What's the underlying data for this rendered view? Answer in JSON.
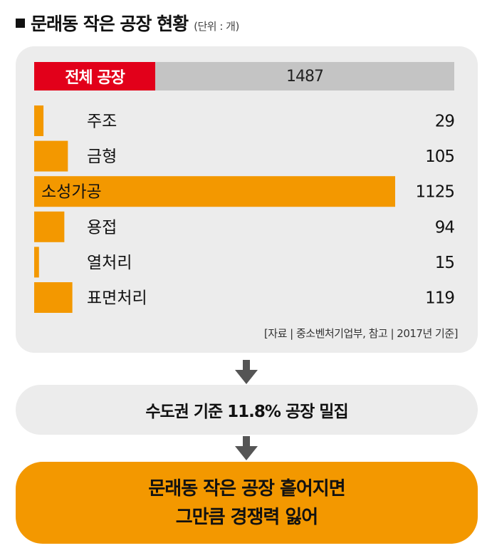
{
  "header": {
    "title": "문래동 작은 공장 현황",
    "unit": "(단위 : 개)"
  },
  "total": {
    "label": "전체 공장",
    "value": "1487"
  },
  "colors": {
    "bar": "#f39800",
    "total_label_bg": "#e2001a",
    "total_bar_bg": "#c4c4c4",
    "panel_bg": "#ececec"
  },
  "chart_data": {
    "type": "bar",
    "orientation": "horizontal",
    "categories": [
      "주조",
      "금형",
      "소성가공",
      "용접",
      "열처리",
      "표면처리"
    ],
    "values": [
      29,
      105,
      1125,
      94,
      15,
      119
    ],
    "total": 1487,
    "value_labels": [
      "29",
      "105",
      "1125",
      "94",
      "15",
      "119"
    ]
  },
  "source": "[자료 | 중소벤처기업부, 참고 | 2017년 기준]",
  "step1": "수도권 기준 11.8% 공장 밀집",
  "step2": {
    "line1": "문래동 작은 공장 흩어지면",
    "line2": "그만큼 경쟁력 잃어"
  }
}
